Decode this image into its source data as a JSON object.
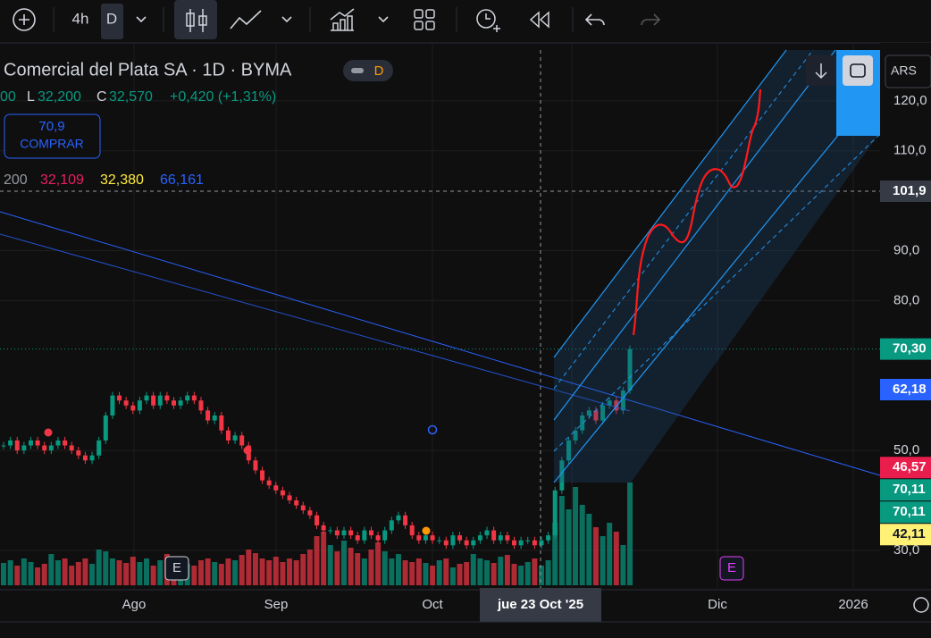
{
  "toolbar": {
    "interval": "4h",
    "chart_type": "D"
  },
  "header": {
    "title": "Comercial del Plata SA · 1D · BYMA",
    "badge": "D",
    "ohlc_prefix": "00",
    "low_label": "L",
    "low": "32,200",
    "close_label": "C",
    "close": "32,570",
    "change": "+0,420 (+1,31%)",
    "buy_price": "70,9",
    "buy_label": "COMPRAR"
  },
  "indicators": {
    "ma_a": "200",
    "ma_b": "32,109",
    "ma_c": "32,380",
    "ma_d": "66,161"
  },
  "currency": "ARS",
  "time_axis": {
    "labels": [
      "Ago",
      "Sep",
      "Oct",
      "Dic",
      "2026"
    ],
    "crosshair": "jue 23 Oct '25"
  },
  "events": [
    "E",
    "E"
  ],
  "chart_data": {
    "type": "candlestick",
    "closes": [
      51,
      52,
      50,
      51,
      52,
      51,
      50,
      51,
      52,
      51,
      50,
      49,
      48,
      49,
      52,
      57,
      61,
      60,
      59,
      58,
      60,
      61,
      59,
      61,
      60,
      59,
      60,
      61,
      60,
      58,
      56,
      57,
      54,
      52,
      53,
      51,
      48,
      46,
      44,
      43,
      42,
      41,
      40,
      39,
      38,
      37,
      35,
      34,
      34,
      33,
      34,
      33,
      32,
      34,
      33,
      32,
      34,
      36,
      37,
      35,
      33,
      32,
      33,
      32,
      32,
      31,
      33,
      32,
      31,
      32,
      33,
      34,
      32,
      33,
      32,
      31,
      32,
      32,
      31,
      32,
      33,
      42,
      48,
      52,
      54,
      57,
      58,
      56,
      59,
      60,
      58,
      62,
      70.3
    ],
    "volumes": [
      25,
      28,
      22,
      30,
      26,
      20,
      24,
      35,
      28,
      30,
      22,
      26,
      30,
      24,
      40,
      38,
      30,
      28,
      25,
      32,
      26,
      30,
      22,
      28,
      35,
      30,
      26,
      24,
      22,
      28,
      30,
      26,
      24,
      30,
      28,
      34,
      40,
      36,
      30,
      28,
      32,
      26,
      30,
      28,
      35,
      40,
      55,
      60,
      45,
      38,
      50,
      42,
      36,
      30,
      40,
      48,
      38,
      30,
      35,
      28,
      26,
      30,
      25,
      22,
      28,
      30,
      20,
      24,
      26,
      35,
      30,
      28,
      25,
      32,
      34,
      24,
      22,
      26,
      30,
      22,
      28,
      70,
      100,
      85,
      110,
      90,
      80,
      65,
      55,
      70,
      60,
      45,
      115
    ],
    "up_color": "#089981",
    "down_color": "#f23645",
    "ylim": [
      23,
      131.6
    ],
    "yticks": [
      {
        "value": 120,
        "label": "120,0"
      },
      {
        "value": 110,
        "label": "110,0"
      },
      {
        "value": 90,
        "label": "90,0"
      },
      {
        "value": 80,
        "label": "80,0"
      },
      {
        "value": 50,
        "label": "50,0"
      },
      {
        "value": 30,
        "label": "30,0"
      }
    ],
    "price_tags": [
      {
        "value": 101.9,
        "label": "101,9",
        "color": "#363a45"
      },
      {
        "value": 70.3,
        "label": "70,30",
        "color": "#089981"
      },
      {
        "value": 62.18,
        "label": "62,18",
        "color": "#2962ff"
      },
      {
        "value": 46.57,
        "label": "46,57",
        "color": "#e91e4d"
      },
      {
        "value": 70.11,
        "label": "70,11",
        "color": "#089981"
      },
      {
        "value": 70.11,
        "label": "70,11",
        "color": "#089981"
      },
      {
        "value": 42.11,
        "label": "42,11",
        "color": "#fff176"
      }
    ]
  }
}
